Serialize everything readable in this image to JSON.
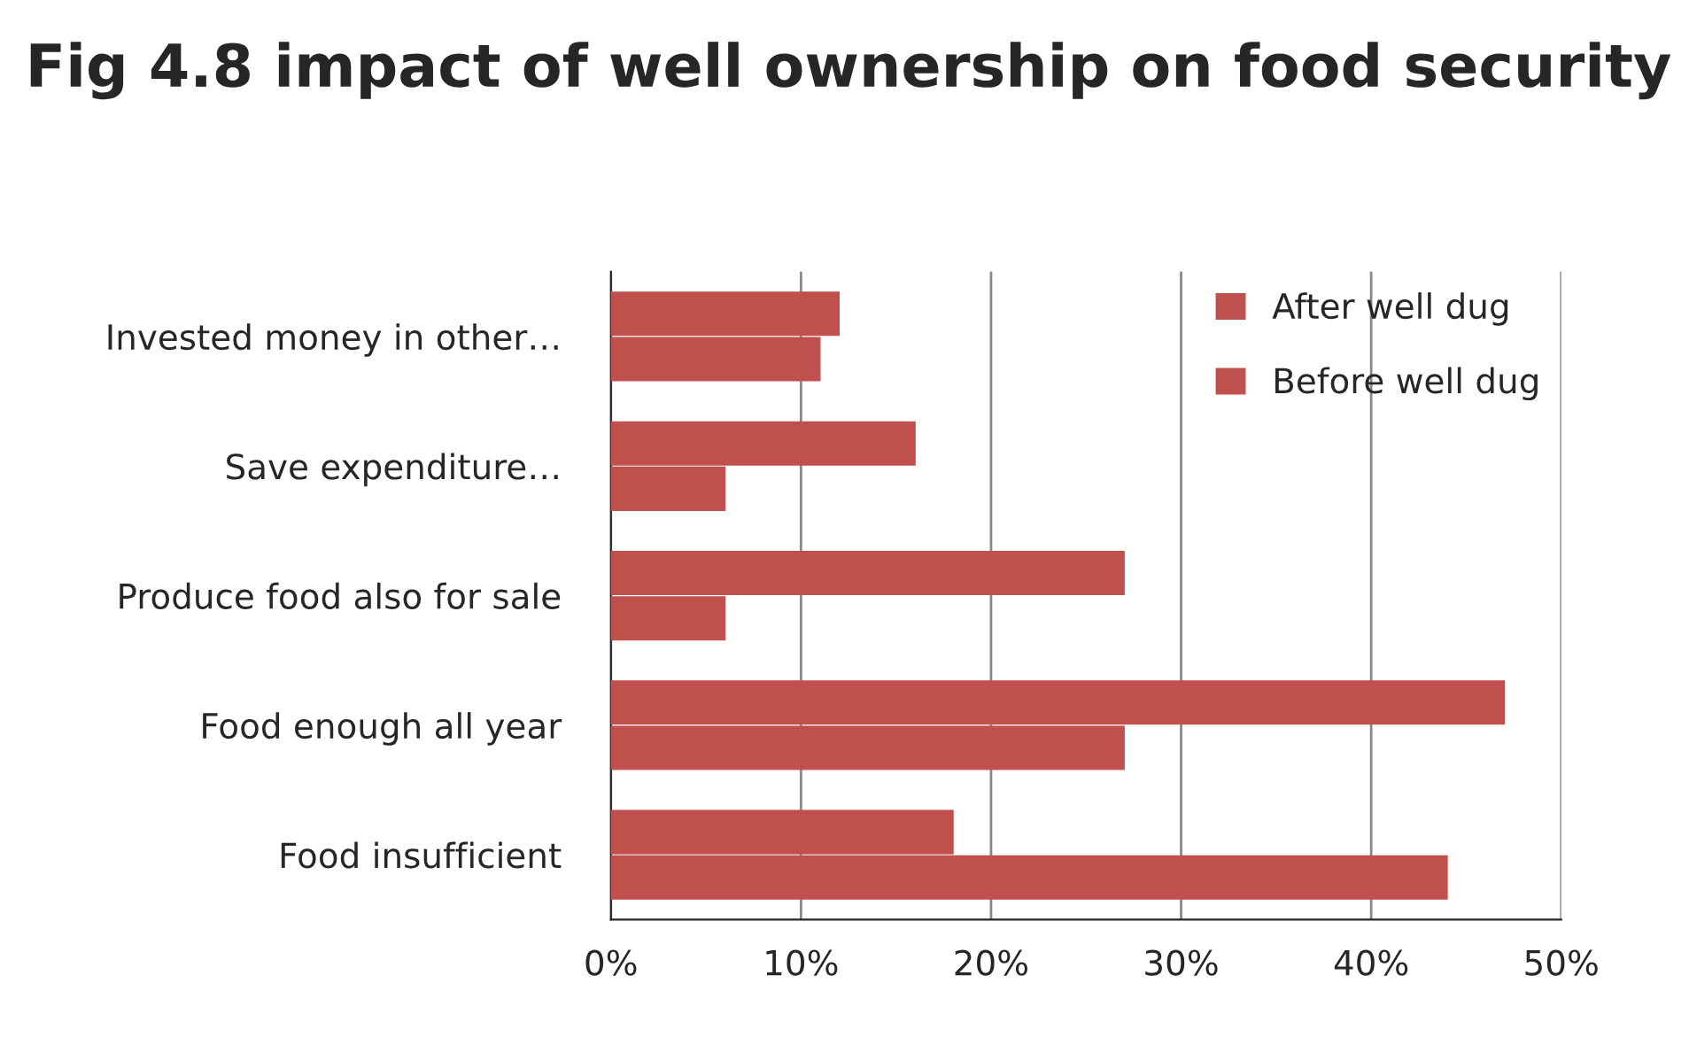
{
  "chart_data": {
    "type": "bar",
    "orientation": "horizontal",
    "title": "Fig 4.8 impact of well ownership on food security",
    "categories": [
      "Invested money in other…",
      "Save expenditure…",
      "Produce food also for sale",
      "Food enough all year",
      "Food insufficient"
    ],
    "series": [
      {
        "name": "After well dug",
        "color": "#c0504d",
        "values": [
          12,
          16,
          27,
          47,
          18
        ]
      },
      {
        "name": "Before well dug",
        "color": "#c0504d",
        "values": [
          11,
          6,
          6,
          27,
          44
        ]
      }
    ],
    "xlim": [
      0,
      50
    ],
    "xticks": [
      {
        "value": 0,
        "label": "0%"
      },
      {
        "value": 10,
        "label": "10%"
      },
      {
        "value": 20,
        "label": "20%"
      },
      {
        "value": 30,
        "label": "30%"
      },
      {
        "value": 40,
        "label": "40%"
      },
      {
        "value": 50,
        "label": "50%"
      }
    ],
    "grid": "x",
    "legend": "top right"
  }
}
